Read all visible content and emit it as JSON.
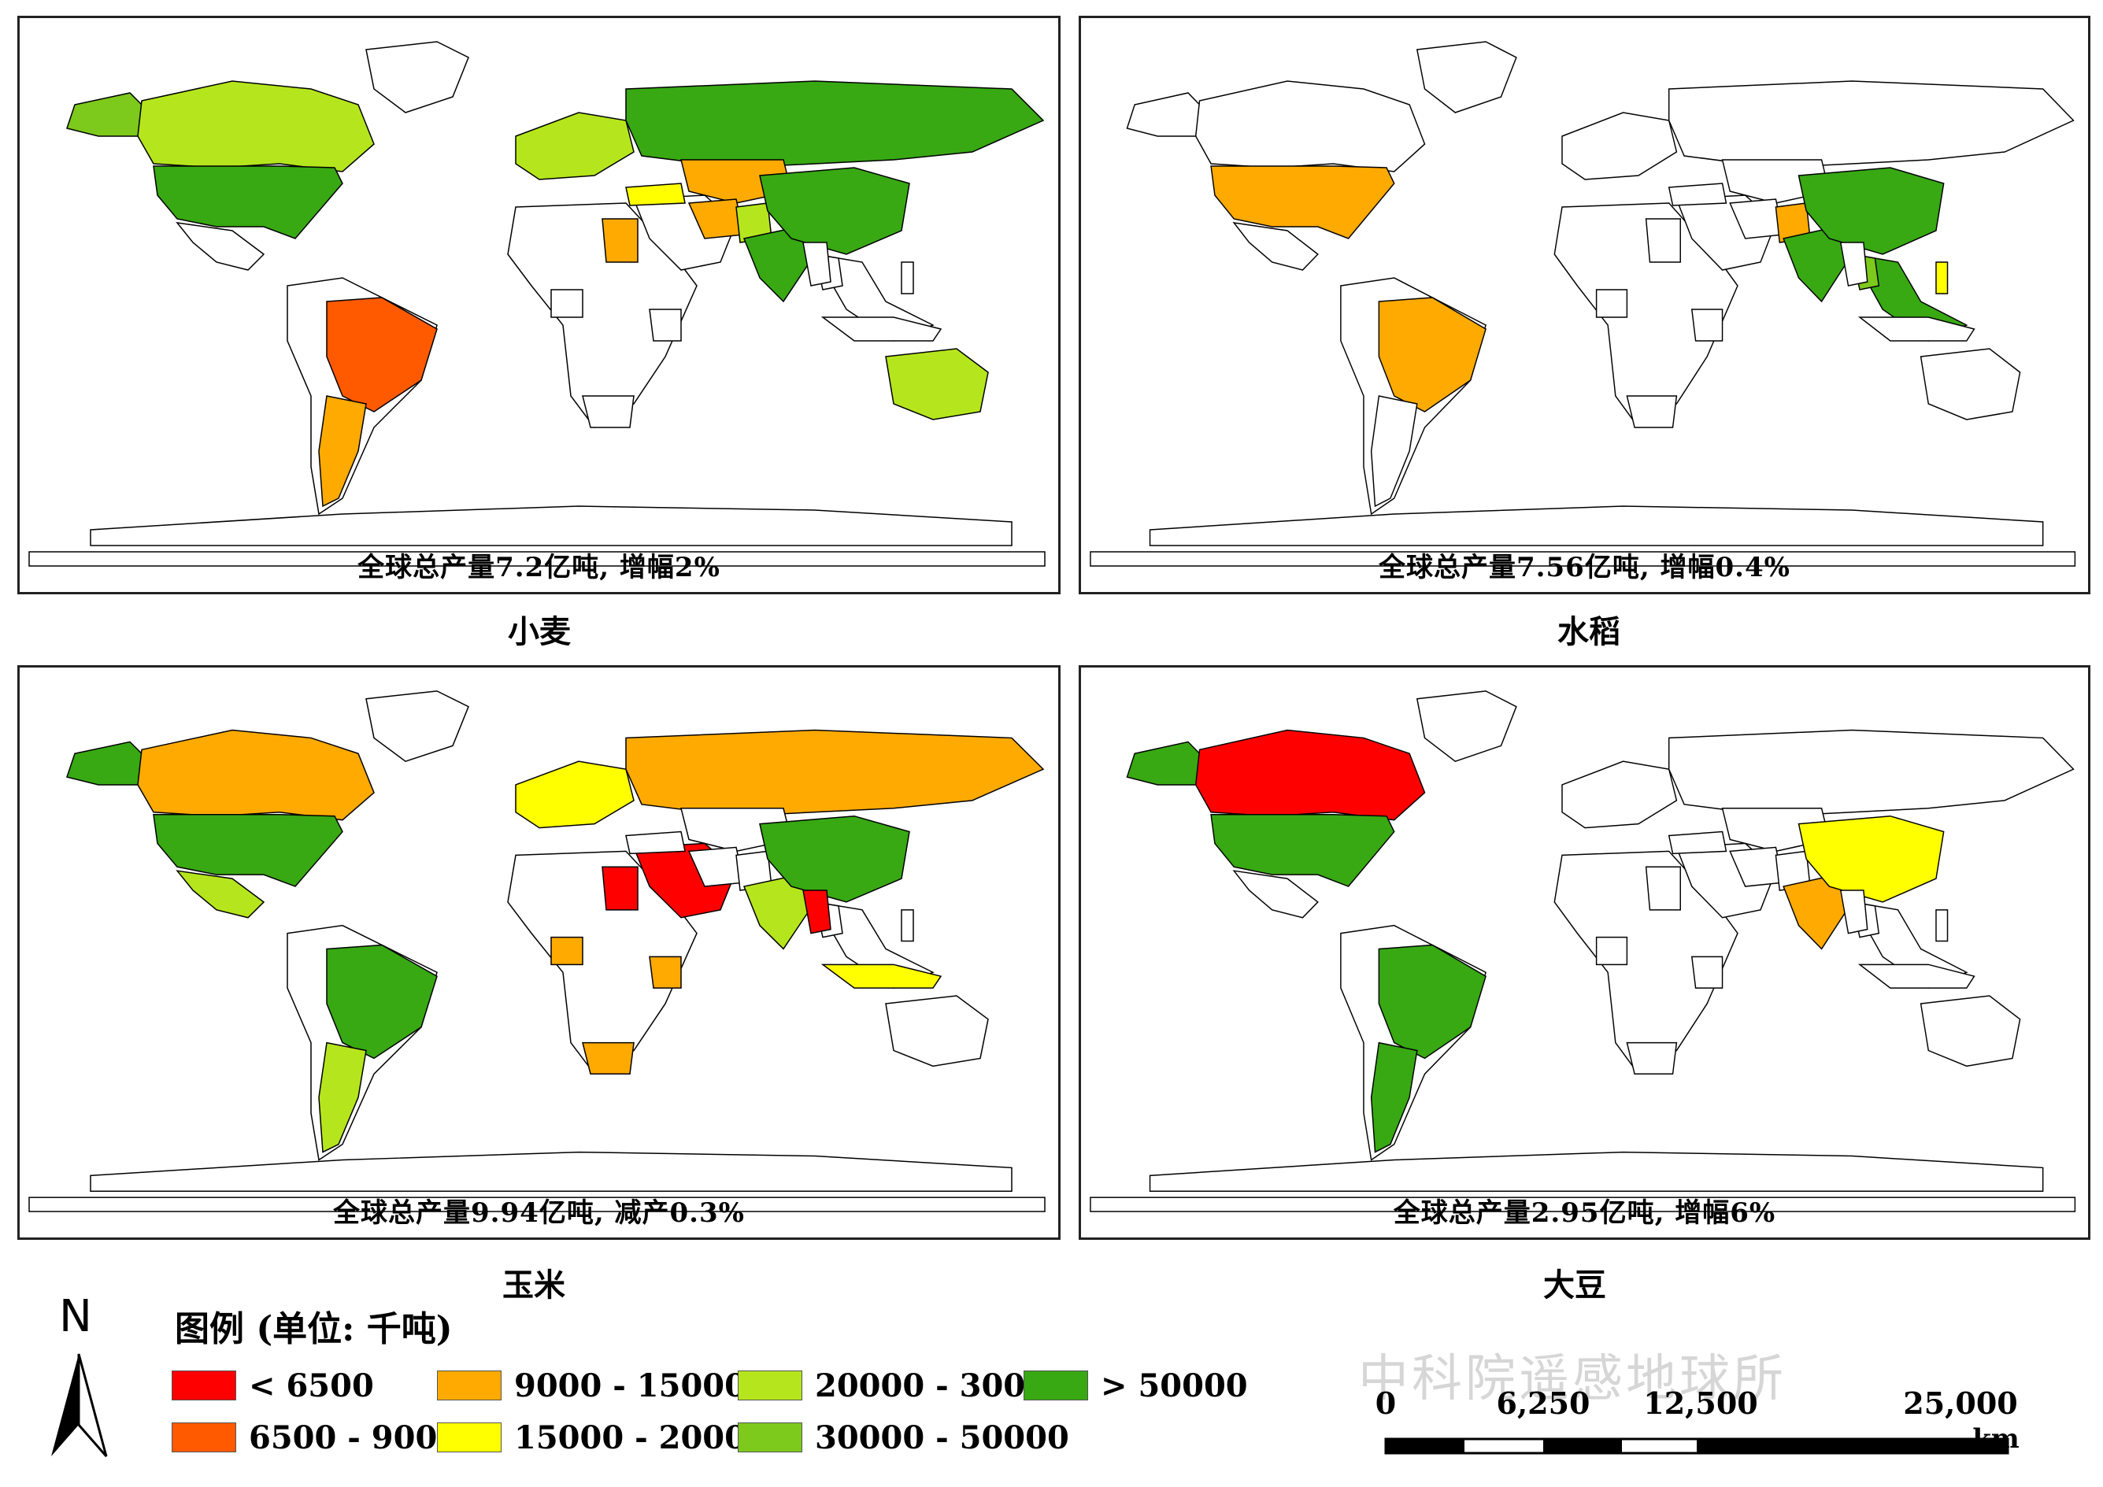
{
  "colors": {
    "lt_6500": "#ff0000",
    "c6500_9000": "#ff5a00",
    "c9000_15000": "#ffaa00",
    "c15000_20000": "#ffff00",
    "c20000_30000": "#b5e61d",
    "c30000_50000": "#7dc91c",
    "gt_50000": "#38a813",
    "land": "#ffffff",
    "border": "#000000"
  },
  "panels": [
    {
      "crop": "小麦",
      "caption": "全球总产量7.2亿吨, 增幅2%",
      "regions": {
        "north_america_west": "c30000_50000",
        "canada": "c20000_30000",
        "usa": "gt_50000",
        "brazil": "c6500_9000",
        "argentina": "c9000_15000",
        "australia": "c20000_30000",
        "russia": "gt_50000",
        "europe": "c20000_30000",
        "kazakhstan": "c9000_15000",
        "china": "gt_50000",
        "india": "gt_50000",
        "egypt": "c9000_15000",
        "turkey": "c15000_20000",
        "iran": "c9000_15000",
        "pakistan": "c20000_30000"
      }
    },
    {
      "crop": "水稻",
      "caption": "全球总产量7.56亿吨, 增幅0.4%",
      "regions": {
        "alaska": "c9000_15000",
        "usa": "c9000_15000",
        "brazil": "c9000_15000",
        "china": "gt_50000",
        "india": "gt_50000",
        "pakistan": "c9000_15000",
        "southeast_asia": "gt_50000",
        "thailand": "c30000_50000",
        "philippines": "c15000_20000"
      }
    },
    {
      "crop": "玉米",
      "caption": "全球总产量9.94亿吨, 减产0.3%",
      "regions": {
        "north_america_west": "gt_50000",
        "canada": "c9000_15000",
        "usa": "gt_50000",
        "mexico": "c20000_30000",
        "brazil": "gt_50000",
        "argentina": "c20000_30000",
        "russia": "c9000_15000",
        "europe": "c15000_20000",
        "china": "gt_50000",
        "india": "c20000_30000",
        "middle_east": "lt_6500",
        "egypt": "lt_6500",
        "south_africa": "c9000_15000",
        "ethiopia": "c9000_15000",
        "indonesia": "c15000_20000",
        "myanmar": "lt_6500",
        "nigeria": "c9000_15000"
      }
    },
    {
      "crop": "大豆",
      "caption": "全球总产量2.95亿吨, 增幅6%",
      "regions": {
        "north_america_west": "gt_50000",
        "canada": "lt_6500",
        "usa": "gt_50000",
        "brazil": "gt_50000",
        "argentina": "gt_50000",
        "china": "c15000_20000",
        "india": "c9000_15000"
      }
    }
  ],
  "legend": {
    "title": "图例 (单位: 千吨)",
    "items": [
      {
        "label": "< 6500",
        "class": "lt_6500"
      },
      {
        "label": "9000 - 15000",
        "class": "c9000_15000"
      },
      {
        "label": "20000 - 30000",
        "class": "c20000_30000"
      },
      {
        "label": "> 50000",
        "class": "gt_50000"
      },
      {
        "label": "6500 - 9000",
        "class": "c6500_9000"
      },
      {
        "label": "15000 - 20000",
        "class": "c15000_20000"
      },
      {
        "label": "30000 - 50000",
        "class": "c30000_50000"
      }
    ]
  },
  "north_arrow": "N",
  "scale_bar": {
    "ticks": [
      "0",
      "6,250",
      "12,500",
      "25,000"
    ],
    "unit": "km"
  },
  "watermark": "中科院遥感地球所"
}
